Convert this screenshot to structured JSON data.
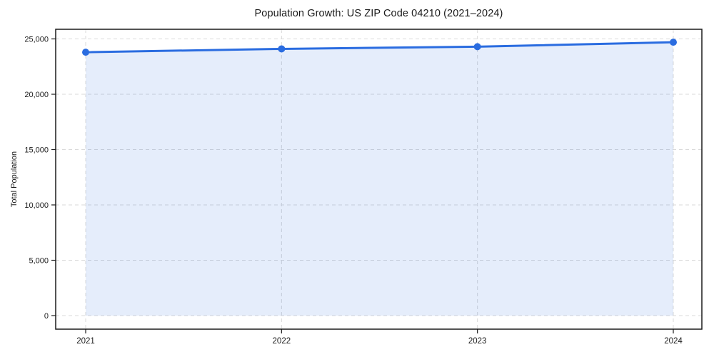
{
  "chart_data": {
    "type": "line",
    "title": "Population Growth: US ZIP Code 04210 (2021–2024)",
    "xlabel": "",
    "ylabel": "Total Population",
    "x": [
      "2021",
      "2022",
      "2023",
      "2024"
    ],
    "series": [
      {
        "name": "Total Population",
        "values": [
          23800,
          24100,
          24300,
          24700
        ]
      }
    ],
    "yticks": [
      0,
      5000,
      10000,
      15000,
      20000,
      25000
    ],
    "ytick_labels": [
      "0",
      "5,000",
      "10,000",
      "15,000",
      "20,000",
      "25,000"
    ],
    "ylim": [
      0,
      25000
    ],
    "grid": true,
    "grid_style": "dashed",
    "legend_position": "none",
    "marker": "circle",
    "area_fill": true,
    "colors": {
      "line": "#2a6ce0",
      "marker": "#2a6ce0",
      "area_fill": "rgba(42, 108, 224, 0.12)",
      "grid": "#d9d9d9",
      "axis": "#1a1a1a",
      "background": "#ffffff"
    }
  }
}
